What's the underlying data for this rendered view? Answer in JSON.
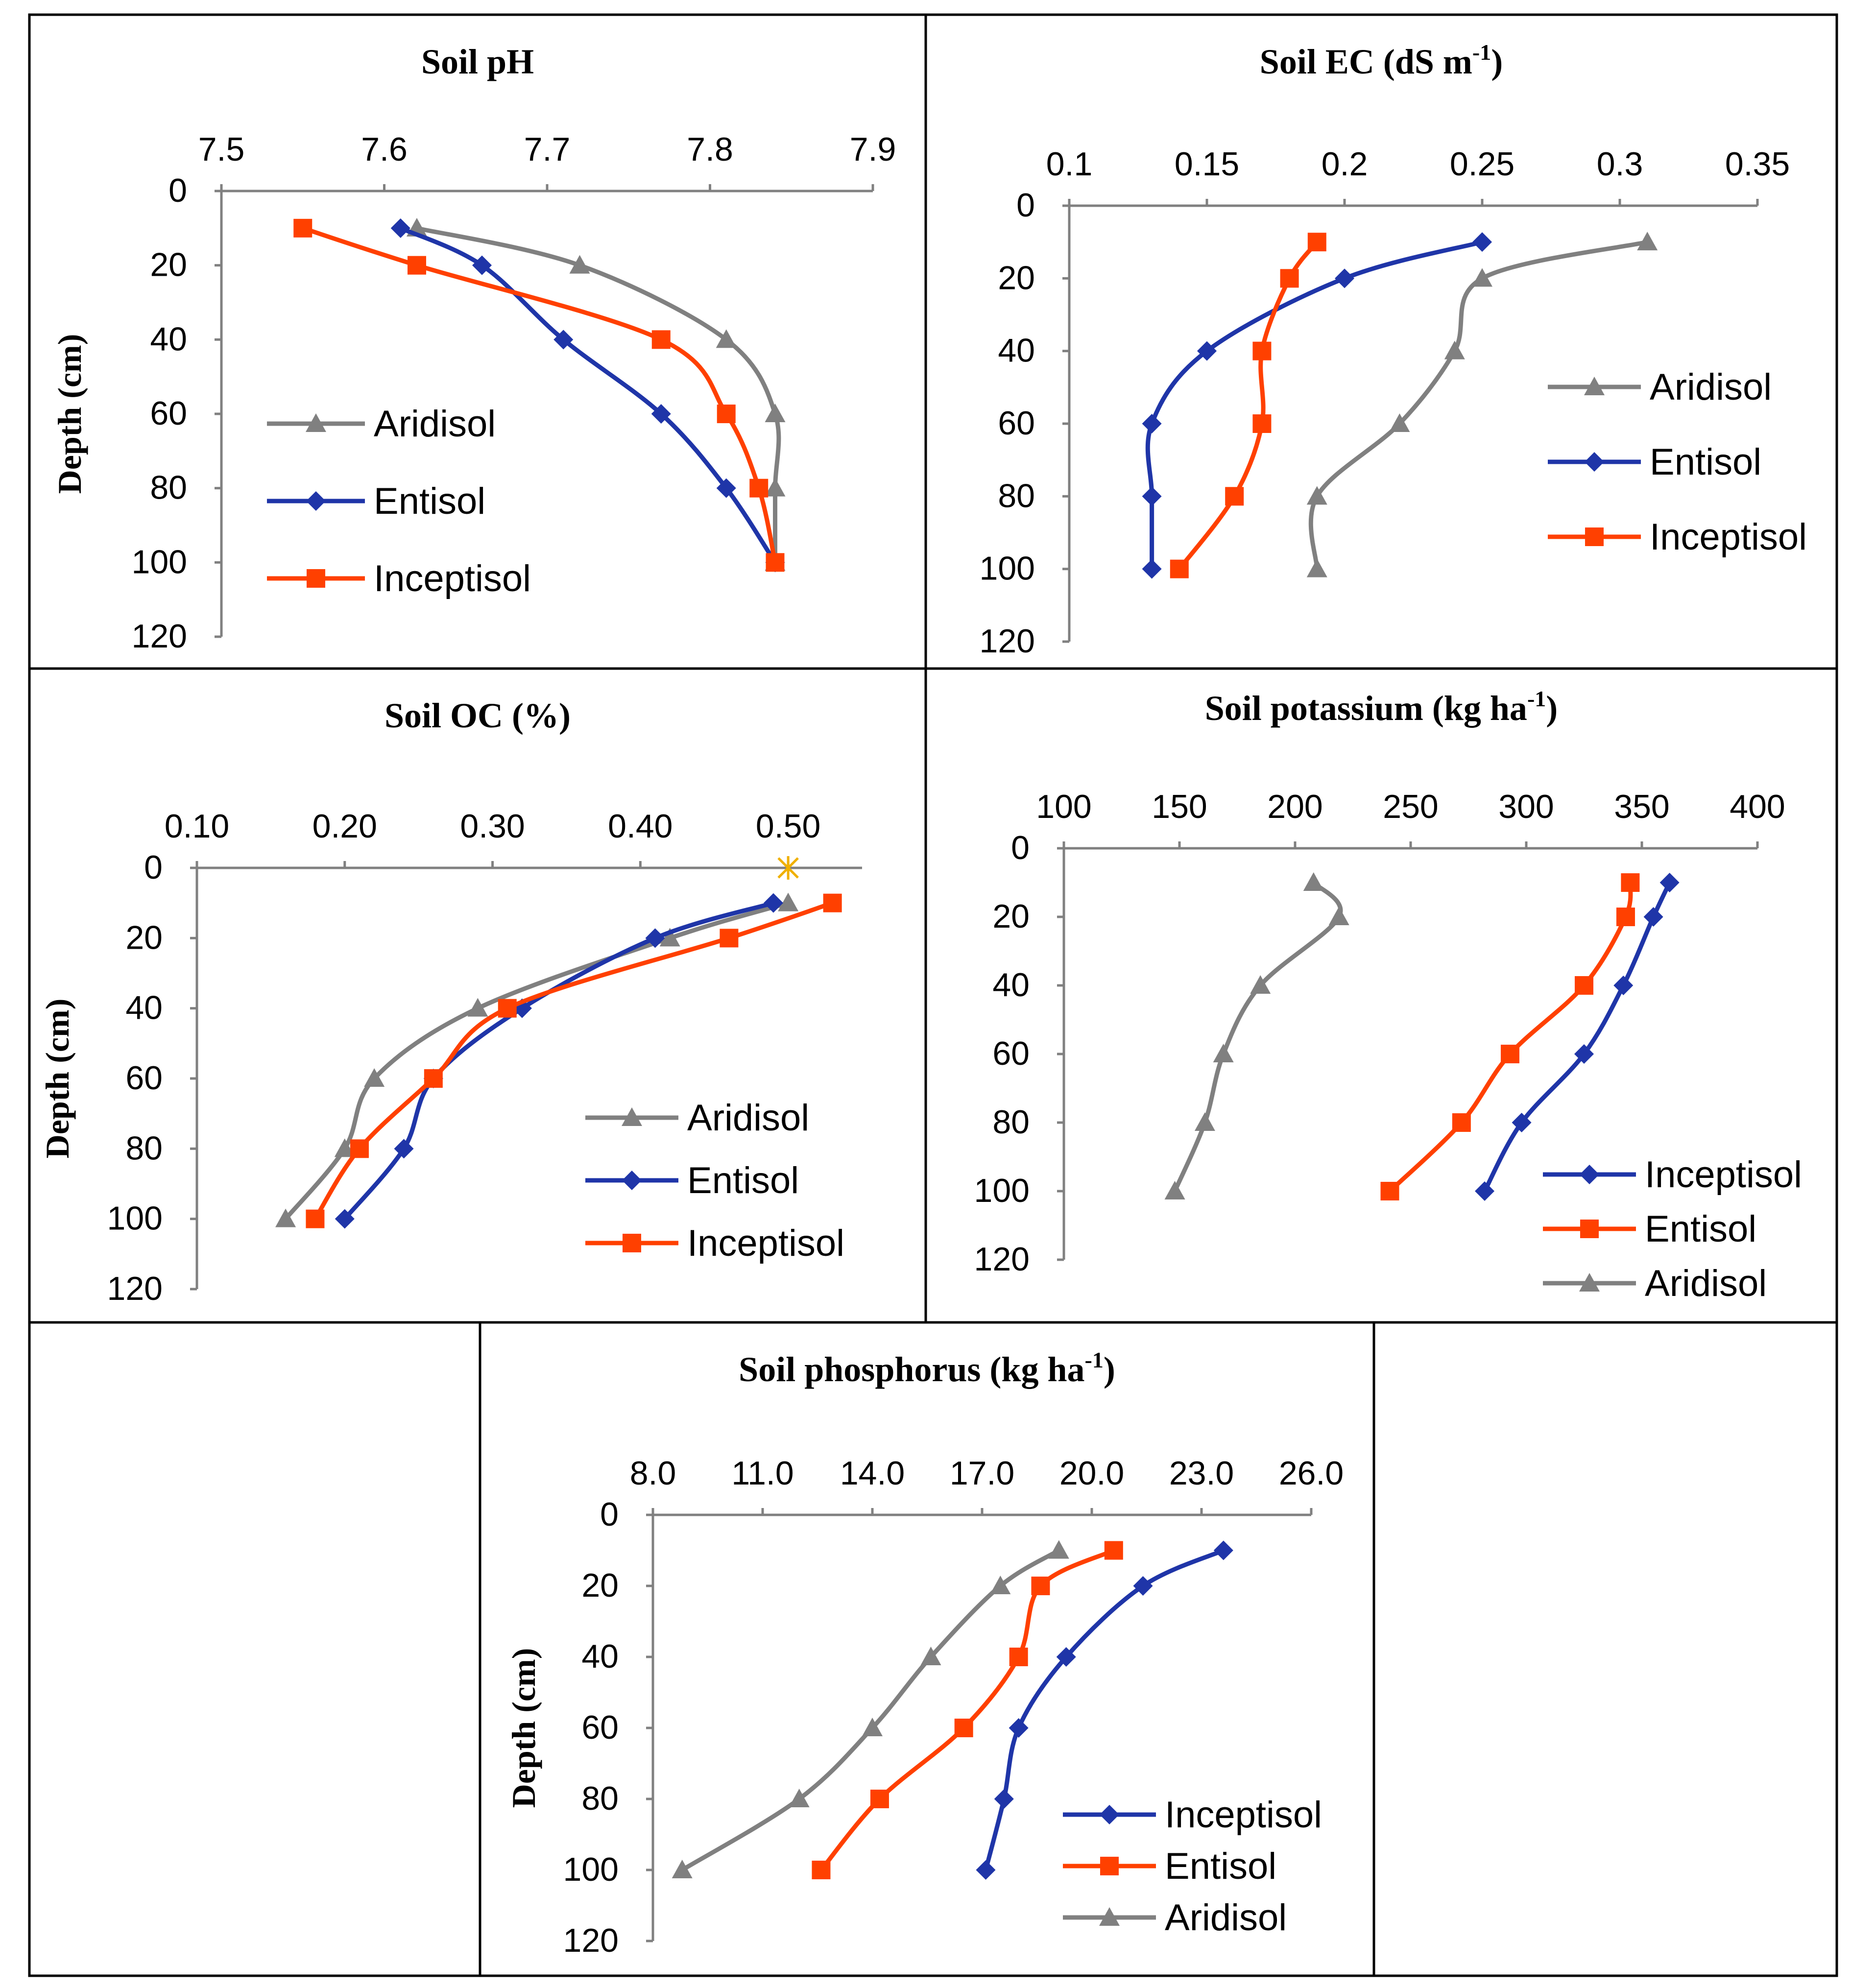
{
  "colors": {
    "aridisol": "#808080",
    "entisol": "#1f35a8",
    "inceptisol": "#ff4000",
    "star": "#f0b000"
  },
  "chart_data": [
    {
      "type": "line",
      "title": "Soil pH",
      "ylabel": "Depth (cm)",
      "xlim": [
        7.5,
        7.9
      ],
      "xticks": [
        "7.5",
        "7.6",
        "7.7",
        "7.8",
        "7.9"
      ],
      "ylim": [
        0,
        120
      ],
      "yticks": [
        "0",
        "20",
        "40",
        "60",
        "80",
        "100",
        "120"
      ],
      "legend_position": "left-bottom",
      "series": [
        {
          "name": "Aridisol",
          "color": "#808080",
          "marker": "triangle",
          "x": [
            7.62,
            7.72,
            7.81,
            7.84,
            7.84,
            7.84
          ],
          "y": [
            10,
            20,
            40,
            60,
            80,
            100
          ]
        },
        {
          "name": "Entisol",
          "color": "#1f35a8",
          "marker": "diamond",
          "x": [
            7.61,
            7.66,
            7.71,
            7.77,
            7.81,
            7.84
          ],
          "y": [
            10,
            20,
            40,
            60,
            80,
            100
          ]
        },
        {
          "name": "Inceptisol",
          "color": "#ff4000",
          "marker": "square",
          "x": [
            7.55,
            7.62,
            7.77,
            7.81,
            7.83,
            7.84
          ],
          "y": [
            10,
            20,
            40,
            60,
            80,
            100
          ]
        }
      ]
    },
    {
      "type": "line",
      "title": "Soil EC (dS m-1)",
      "ylabel": "",
      "xlim": [
        0.1,
        0.35
      ],
      "xticks": [
        "0.1",
        "0.15",
        "0.2",
        "0.25",
        "0.3",
        "0.35"
      ],
      "ylim": [
        0,
        120
      ],
      "yticks": [
        "0",
        "20",
        "40",
        "60",
        "80",
        "100",
        "120"
      ],
      "legend_position": "right-middle",
      "series": [
        {
          "name": "Aridisol",
          "color": "#808080",
          "marker": "triangle",
          "x": [
            0.31,
            0.25,
            0.24,
            0.22,
            0.19,
            0.19
          ],
          "y": [
            10,
            20,
            40,
            60,
            80,
            100
          ]
        },
        {
          "name": "Entisol",
          "color": "#1f35a8",
          "marker": "diamond",
          "x": [
            0.25,
            0.2,
            0.15,
            0.13,
            0.13,
            0.13
          ],
          "y": [
            10,
            20,
            40,
            60,
            80,
            100
          ]
        },
        {
          "name": "Inceptisol",
          "color": "#ff4000",
          "marker": "square",
          "x": [
            0.19,
            0.18,
            0.17,
            0.17,
            0.16,
            0.14
          ],
          "y": [
            10,
            20,
            40,
            60,
            80,
            100
          ]
        }
      ]
    },
    {
      "type": "line",
      "title": "Soil OC (%)",
      "ylabel": "Depth (cm)",
      "xlim": [
        0.1,
        0.55
      ],
      "xticks": [
        "0.10",
        "0.20",
        "0.30",
        "0.40",
        "0.50"
      ],
      "ylim": [
        0,
        120
      ],
      "yticks": [
        "0",
        "20",
        "40",
        "60",
        "80",
        "100",
        "120"
      ],
      "legend_position": "right-bottom",
      "series": [
        {
          "name": "Aridisol",
          "color": "#808080",
          "marker": "triangle",
          "x": [
            0.5,
            0.42,
            0.29,
            0.22,
            0.2,
            0.16
          ],
          "y": [
            10,
            20,
            40,
            60,
            80,
            100
          ]
        },
        {
          "name": "Entisol",
          "color": "#1f35a8",
          "marker": "diamond",
          "x": [
            0.49,
            0.41,
            0.32,
            0.26,
            0.24,
            0.2
          ],
          "y": [
            10,
            20,
            40,
            60,
            80,
            100
          ]
        },
        {
          "name": "Inceptisol",
          "color": "#ff4000",
          "marker": "square",
          "x": [
            0.53,
            0.46,
            0.31,
            0.26,
            0.21,
            0.18
          ],
          "y": [
            10,
            20,
            40,
            60,
            80,
            100
          ]
        }
      ],
      "extra_points": [
        {
          "x": 0.5,
          "y": 0,
          "marker": "star",
          "color": "#f0b000"
        }
      ]
    },
    {
      "type": "line",
      "title": "Soil potassium (kg ha-1)",
      "ylabel": "",
      "xlim": [
        100,
        400
      ],
      "xticks": [
        "100",
        "150",
        "200",
        "250",
        "300",
        "350",
        "400"
      ],
      "ylim": [
        0,
        120
      ],
      "yticks": [
        "0",
        "20",
        "40",
        "60",
        "80",
        "100",
        "120"
      ],
      "legend_position": "right-bottom",
      "series": [
        {
          "name": "Inceptisol",
          "color": "#1f35a8",
          "marker": "diamond",
          "x": [
            362,
            355,
            342,
            325,
            298,
            282
          ],
          "y": [
            10,
            20,
            40,
            60,
            80,
            100
          ]
        },
        {
          "name": "Entisol",
          "color": "#ff4000",
          "marker": "square",
          "x": [
            345,
            343,
            325,
            293,
            272,
            241
          ],
          "y": [
            10,
            20,
            40,
            60,
            80,
            100
          ]
        },
        {
          "name": "Aridisol",
          "color": "#808080",
          "marker": "triangle",
          "x": [
            208,
            219,
            185,
            169,
            161,
            148
          ],
          "y": [
            10,
            20,
            40,
            60,
            80,
            100
          ]
        }
      ]
    },
    {
      "type": "line",
      "title": "Soil phosphorus (kg ha-1)",
      "ylabel": "Depth (cm)",
      "xlim": [
        8.0,
        26.0
      ],
      "xticks": [
        "8.0",
        "11.0",
        "14.0",
        "17.0",
        "20.0",
        "23.0",
        "26.0"
      ],
      "ylim": [
        0,
        120
      ],
      "yticks": [
        "0",
        "20",
        "40",
        "60",
        "80",
        "100",
        "120"
      ],
      "legend_position": "right-bottom",
      "series": [
        {
          "name": "Inceptisol",
          "color": "#1f35a8",
          "marker": "diamond",
          "x": [
            23.6,
            21.4,
            19.3,
            18.0,
            17.6,
            17.1
          ],
          "y": [
            10,
            20,
            40,
            60,
            80,
            100
          ]
        },
        {
          "name": "Entisol",
          "color": "#ff4000",
          "marker": "square",
          "x": [
            20.6,
            18.6,
            18.0,
            16.5,
            14.2,
            12.6
          ],
          "y": [
            10,
            20,
            40,
            60,
            80,
            100
          ]
        },
        {
          "name": "Aridisol",
          "color": "#808080",
          "marker": "triangle",
          "x": [
            19.1,
            17.5,
            15.6,
            14.0,
            12.0,
            8.8
          ],
          "y": [
            10,
            20,
            40,
            60,
            80,
            100
          ]
        }
      ]
    }
  ]
}
